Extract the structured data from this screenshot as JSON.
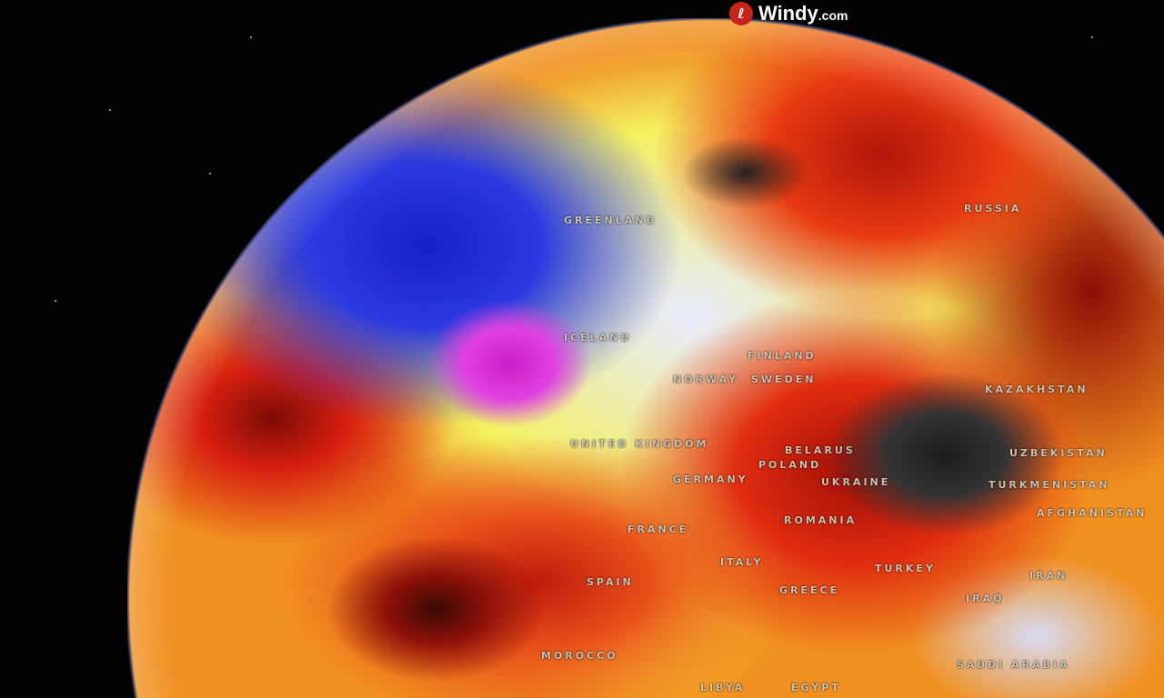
{
  "brand": {
    "name": "Windy",
    "suffix": ".com",
    "icon": "windy-logo-icon",
    "color": "#c8221a"
  },
  "map_labels": [
    {
      "id": "greenland",
      "text": "GREENLAND"
    },
    {
      "id": "iceland",
      "text": "ICELAND"
    },
    {
      "id": "russia",
      "text": "RUSSIA"
    },
    {
      "id": "finland",
      "text": "FINLAND"
    },
    {
      "id": "norway",
      "text": "NORWAY"
    },
    {
      "id": "sweden",
      "text": "SWEDEN"
    },
    {
      "id": "united-kingdom",
      "text": "UNITED KINGDOM"
    },
    {
      "id": "germany",
      "text": "GERMANY"
    },
    {
      "id": "poland",
      "text": "POLAND"
    },
    {
      "id": "belarus",
      "text": "BELARUS"
    },
    {
      "id": "ukraine",
      "text": "UKRAINE"
    },
    {
      "id": "romania",
      "text": "ROMANIA"
    },
    {
      "id": "kazakhstan",
      "text": "KAZAKHSTAN"
    },
    {
      "id": "uzbekistan",
      "text": "UZBEKISTAN"
    },
    {
      "id": "turkmenistan",
      "text": "TURKMENISTAN"
    },
    {
      "id": "afghanistan",
      "text": "AFGHANISTAN"
    },
    {
      "id": "france",
      "text": "FRANCE"
    },
    {
      "id": "spain",
      "text": "SPAIN"
    },
    {
      "id": "italy",
      "text": "ITALY"
    },
    {
      "id": "greece",
      "text": "GREECE"
    },
    {
      "id": "turkey",
      "text": "TURKEY"
    },
    {
      "id": "iraq",
      "text": "IRAQ"
    },
    {
      "id": "iran",
      "text": "IRAN"
    },
    {
      "id": "morocco",
      "text": "MOROCCO"
    },
    {
      "id": "saudi-arabia",
      "text": "SAUDI ARABIA"
    },
    {
      "id": "egypt",
      "text": "EGYPT"
    },
    {
      "id": "libya",
      "text": "LIBYA"
    }
  ],
  "colors": {
    "cold": "#2a3ae0",
    "neutral": "#e8ecff",
    "warm": "#f4f060",
    "hot": "#e02c10",
    "extreme_hot": "#222222",
    "extreme_cold": "#e040e0"
  }
}
